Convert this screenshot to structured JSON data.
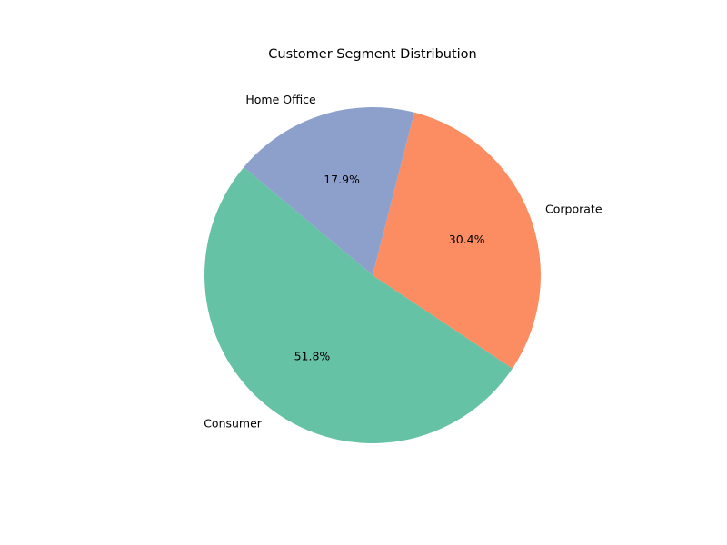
{
  "chart_data": {
    "type": "pie",
    "title": "Customer Segment Distribution",
    "start_angle_deg": 140,
    "direction": "counterclockwise",
    "slices": [
      {
        "label": "Consumer",
        "value": 51.8,
        "pct_label": "51.8%",
        "color": "#66c2a5"
      },
      {
        "label": "Corporate",
        "value": 30.4,
        "pct_label": "30.4%",
        "color": "#fc8d62"
      },
      {
        "label": "Home Office",
        "value": 17.9,
        "pct_label": "17.9%",
        "color": "#8da0cb"
      }
    ]
  }
}
